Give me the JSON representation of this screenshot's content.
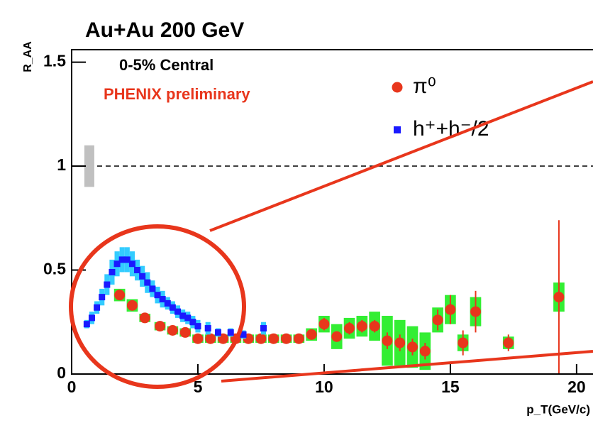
{
  "chart_data": {
    "type": "scatter",
    "title": "Au+Au 200 GeV",
    "x_label": "p_T(GeV/c)",
    "y_label": "R_AA",
    "annotations": [
      "0-5% Central",
      "PHENIX preliminary"
    ],
    "xlim": [
      0,
      20.65
    ],
    "ylim": [
      0,
      1.56
    ],
    "xticks": [
      0,
      5,
      10,
      15,
      20
    ],
    "yticks": [
      0,
      0.5,
      1,
      1.5
    ],
    "reference_line": 1,
    "norm_uncertainty": {
      "x": 0.7,
      "low": 0.9,
      "high": 1.1
    },
    "series": [
      {
        "name": "π⁰",
        "color": "#e8361c",
        "box_color": "#33ee33",
        "x": [
          1.9,
          2.4,
          2.9,
          3.5,
          4.0,
          4.5,
          5.0,
          5.5,
          6.0,
          6.5,
          7.0,
          7.5,
          8.0,
          8.5,
          9.0,
          9.5,
          10.0,
          10.5,
          11.0,
          11.5,
          12.0,
          12.5,
          13.0,
          13.5,
          14.0,
          14.5,
          15.0,
          15.5,
          16.0,
          17.3,
          19.3
        ],
        "values": [
          0.38,
          0.33,
          0.27,
          0.23,
          0.21,
          0.2,
          0.17,
          0.17,
          0.17,
          0.17,
          0.17,
          0.17,
          0.17,
          0.17,
          0.17,
          0.19,
          0.24,
          0.18,
          0.22,
          0.23,
          0.23,
          0.16,
          0.15,
          0.13,
          0.11,
          0.26,
          0.31,
          0.15,
          0.3,
          0.15,
          0.37
        ],
        "errors": [
          0.03,
          0.03,
          0.02,
          0.02,
          0.02,
          0.02,
          0.02,
          0.02,
          0.02,
          0.02,
          0.02,
          0.02,
          0.02,
          0.02,
          0.02,
          0.03,
          0.04,
          0.06,
          0.05,
          0.05,
          0.07,
          0.12,
          0.11,
          0.1,
          0.09,
          0.06,
          0.07,
          0.04,
          0.07,
          0.03,
          0.07
        ],
        "stat_errors": [
          0.01,
          0.01,
          0.01,
          0.01,
          0.01,
          0.01,
          0.01,
          0.01,
          0.01,
          0.01,
          0.01,
          0.01,
          0.01,
          0.01,
          0.01,
          0.02,
          0.03,
          0.02,
          0.03,
          0.03,
          0.03,
          0.04,
          0.04,
          0.04,
          0.04,
          0.05,
          0.07,
          0.06,
          0.1,
          0.04,
          0.37
        ]
      },
      {
        "name": "h⁺+h⁻/2",
        "color": "#1a1aff",
        "box_color": "#33ccff",
        "x": [
          0.6,
          0.8,
          1.0,
          1.2,
          1.4,
          1.6,
          1.8,
          2.0,
          2.2,
          2.4,
          2.6,
          2.8,
          3.0,
          3.2,
          3.4,
          3.6,
          3.8,
          4.0,
          4.2,
          4.4,
          4.6,
          4.8,
          5.0,
          5.4,
          5.8,
          6.3,
          6.8,
          7.6
        ],
        "values": [
          0.24,
          0.27,
          0.32,
          0.37,
          0.43,
          0.49,
          0.53,
          0.55,
          0.55,
          0.53,
          0.5,
          0.47,
          0.44,
          0.41,
          0.38,
          0.36,
          0.34,
          0.32,
          0.3,
          0.28,
          0.27,
          0.25,
          0.23,
          0.22,
          0.2,
          0.2,
          0.19,
          0.22
        ],
        "errors": [
          0.02,
          0.03,
          0.03,
          0.04,
          0.05,
          0.06,
          0.06,
          0.06,
          0.06,
          0.06,
          0.05,
          0.05,
          0.05,
          0.04,
          0.04,
          0.04,
          0.03,
          0.03,
          0.03,
          0.03,
          0.03,
          0.03,
          0.03,
          0.03,
          0.02,
          0.02,
          0.02,
          0.03
        ]
      }
    ]
  }
}
